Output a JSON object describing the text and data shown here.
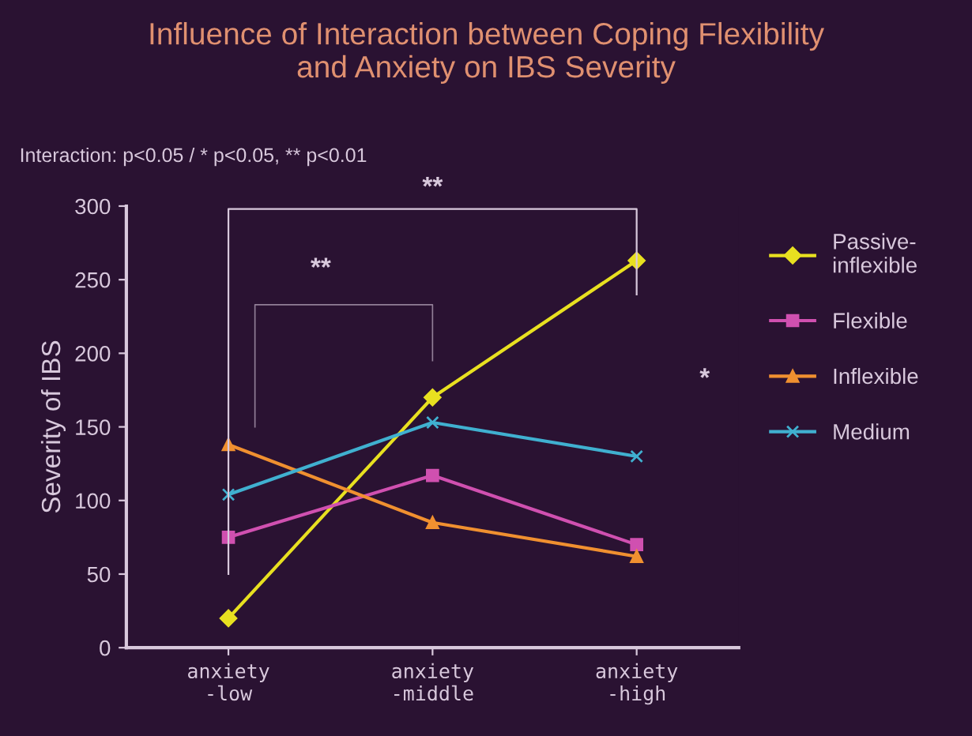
{
  "chart_data": {
    "type": "line",
    "title": "Influence of Interaction between Coping Flexibility\nand Anxiety on IBS Severity",
    "ylabel": "Severity of IBS",
    "annotations": [
      "Interaction: p<0.05 / * p<0.05, ** p<0.01",
      "**",
      "**",
      "*"
    ],
    "categories": [
      "anxiety\n-low",
      "anxiety\n-middle",
      "anxiety\n-high"
    ],
    "series": [
      {
        "name": "Passive-\ninflexible",
        "color": "#e8e020",
        "marker": "diamond",
        "values": [
          20,
          170,
          263
        ]
      },
      {
        "name": "Flexible",
        "color": "#d050b0",
        "marker": "square",
        "values": [
          75,
          117,
          70
        ]
      },
      {
        "name": "Inflexible",
        "color": "#f09030",
        "marker": "triangle",
        "values": [
          138,
          85,
          62
        ]
      },
      {
        "name": "Medium",
        "color": "#40b0d0",
        "marker": "cross",
        "values": [
          104,
          153,
          130
        ]
      }
    ],
    "ylim": [
      0,
      300
    ],
    "yticks": [
      0,
      50,
      100,
      150,
      200,
      250,
      300
    ],
    "grid": false,
    "legend": "right"
  }
}
